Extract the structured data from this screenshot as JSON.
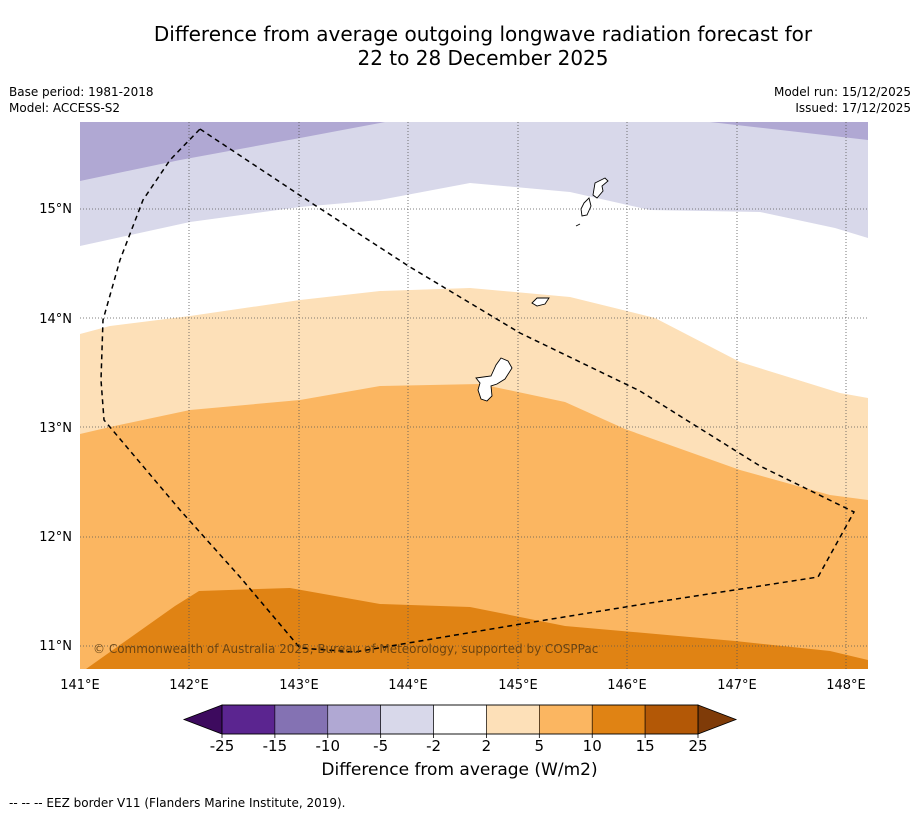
{
  "title": {
    "line1": "Difference from average outgoing longwave radiation forecast for",
    "line2": "22 to 28 December 2025"
  },
  "meta": {
    "base_period": "Base period: 1981-2018",
    "model": "Model: ACCESS-S2",
    "model_run": "Model run: 15/12/2025",
    "issued": "Issued: 17/12/2025"
  },
  "map": {
    "lon_range": [
      141.0,
      148.2
    ],
    "lat_range": [
      10.8,
      15.8
    ],
    "lon_ticks": [
      {
        "value": 141,
        "label": "141°E"
      },
      {
        "value": 142,
        "label": "142°E"
      },
      {
        "value": 143,
        "label": "143°E"
      },
      {
        "value": 144,
        "label": "144°E"
      },
      {
        "value": 145,
        "label": "145°E"
      },
      {
        "value": 146,
        "label": "146°E"
      },
      {
        "value": 147,
        "label": "147°E"
      },
      {
        "value": 148,
        "label": "148°E"
      }
    ],
    "lat_ticks": [
      {
        "value": 15,
        "label": "15°N"
      },
      {
        "value": 14,
        "label": "14°N"
      },
      {
        "value": 13,
        "label": "13°N"
      },
      {
        "value": 12,
        "label": "12°N"
      },
      {
        "value": 11,
        "label": "11°N"
      }
    ],
    "copyright": "© Commonwealth of Australia 2025, Bureau of Meteorology, supported by COSPPac"
  },
  "legend": {
    "ticks": [
      "-25",
      "-15",
      "-10",
      "-5",
      "-2",
      "2",
      "5",
      "10",
      "15",
      "25"
    ],
    "colors": [
      "#3d0a5e",
      "#5b2590",
      "#8472b3",
      "#b0a8d3",
      "#d8d8ea",
      "#ffffff",
      "#fde0b8",
      "#fbb661",
      "#e08314",
      "#b35806",
      "#7f3b08"
    ],
    "label": "Difference from average (W/m2)"
  },
  "footer": "--  --  -- EEZ border V11 (Flanders Marine Institute, 2019)."
}
